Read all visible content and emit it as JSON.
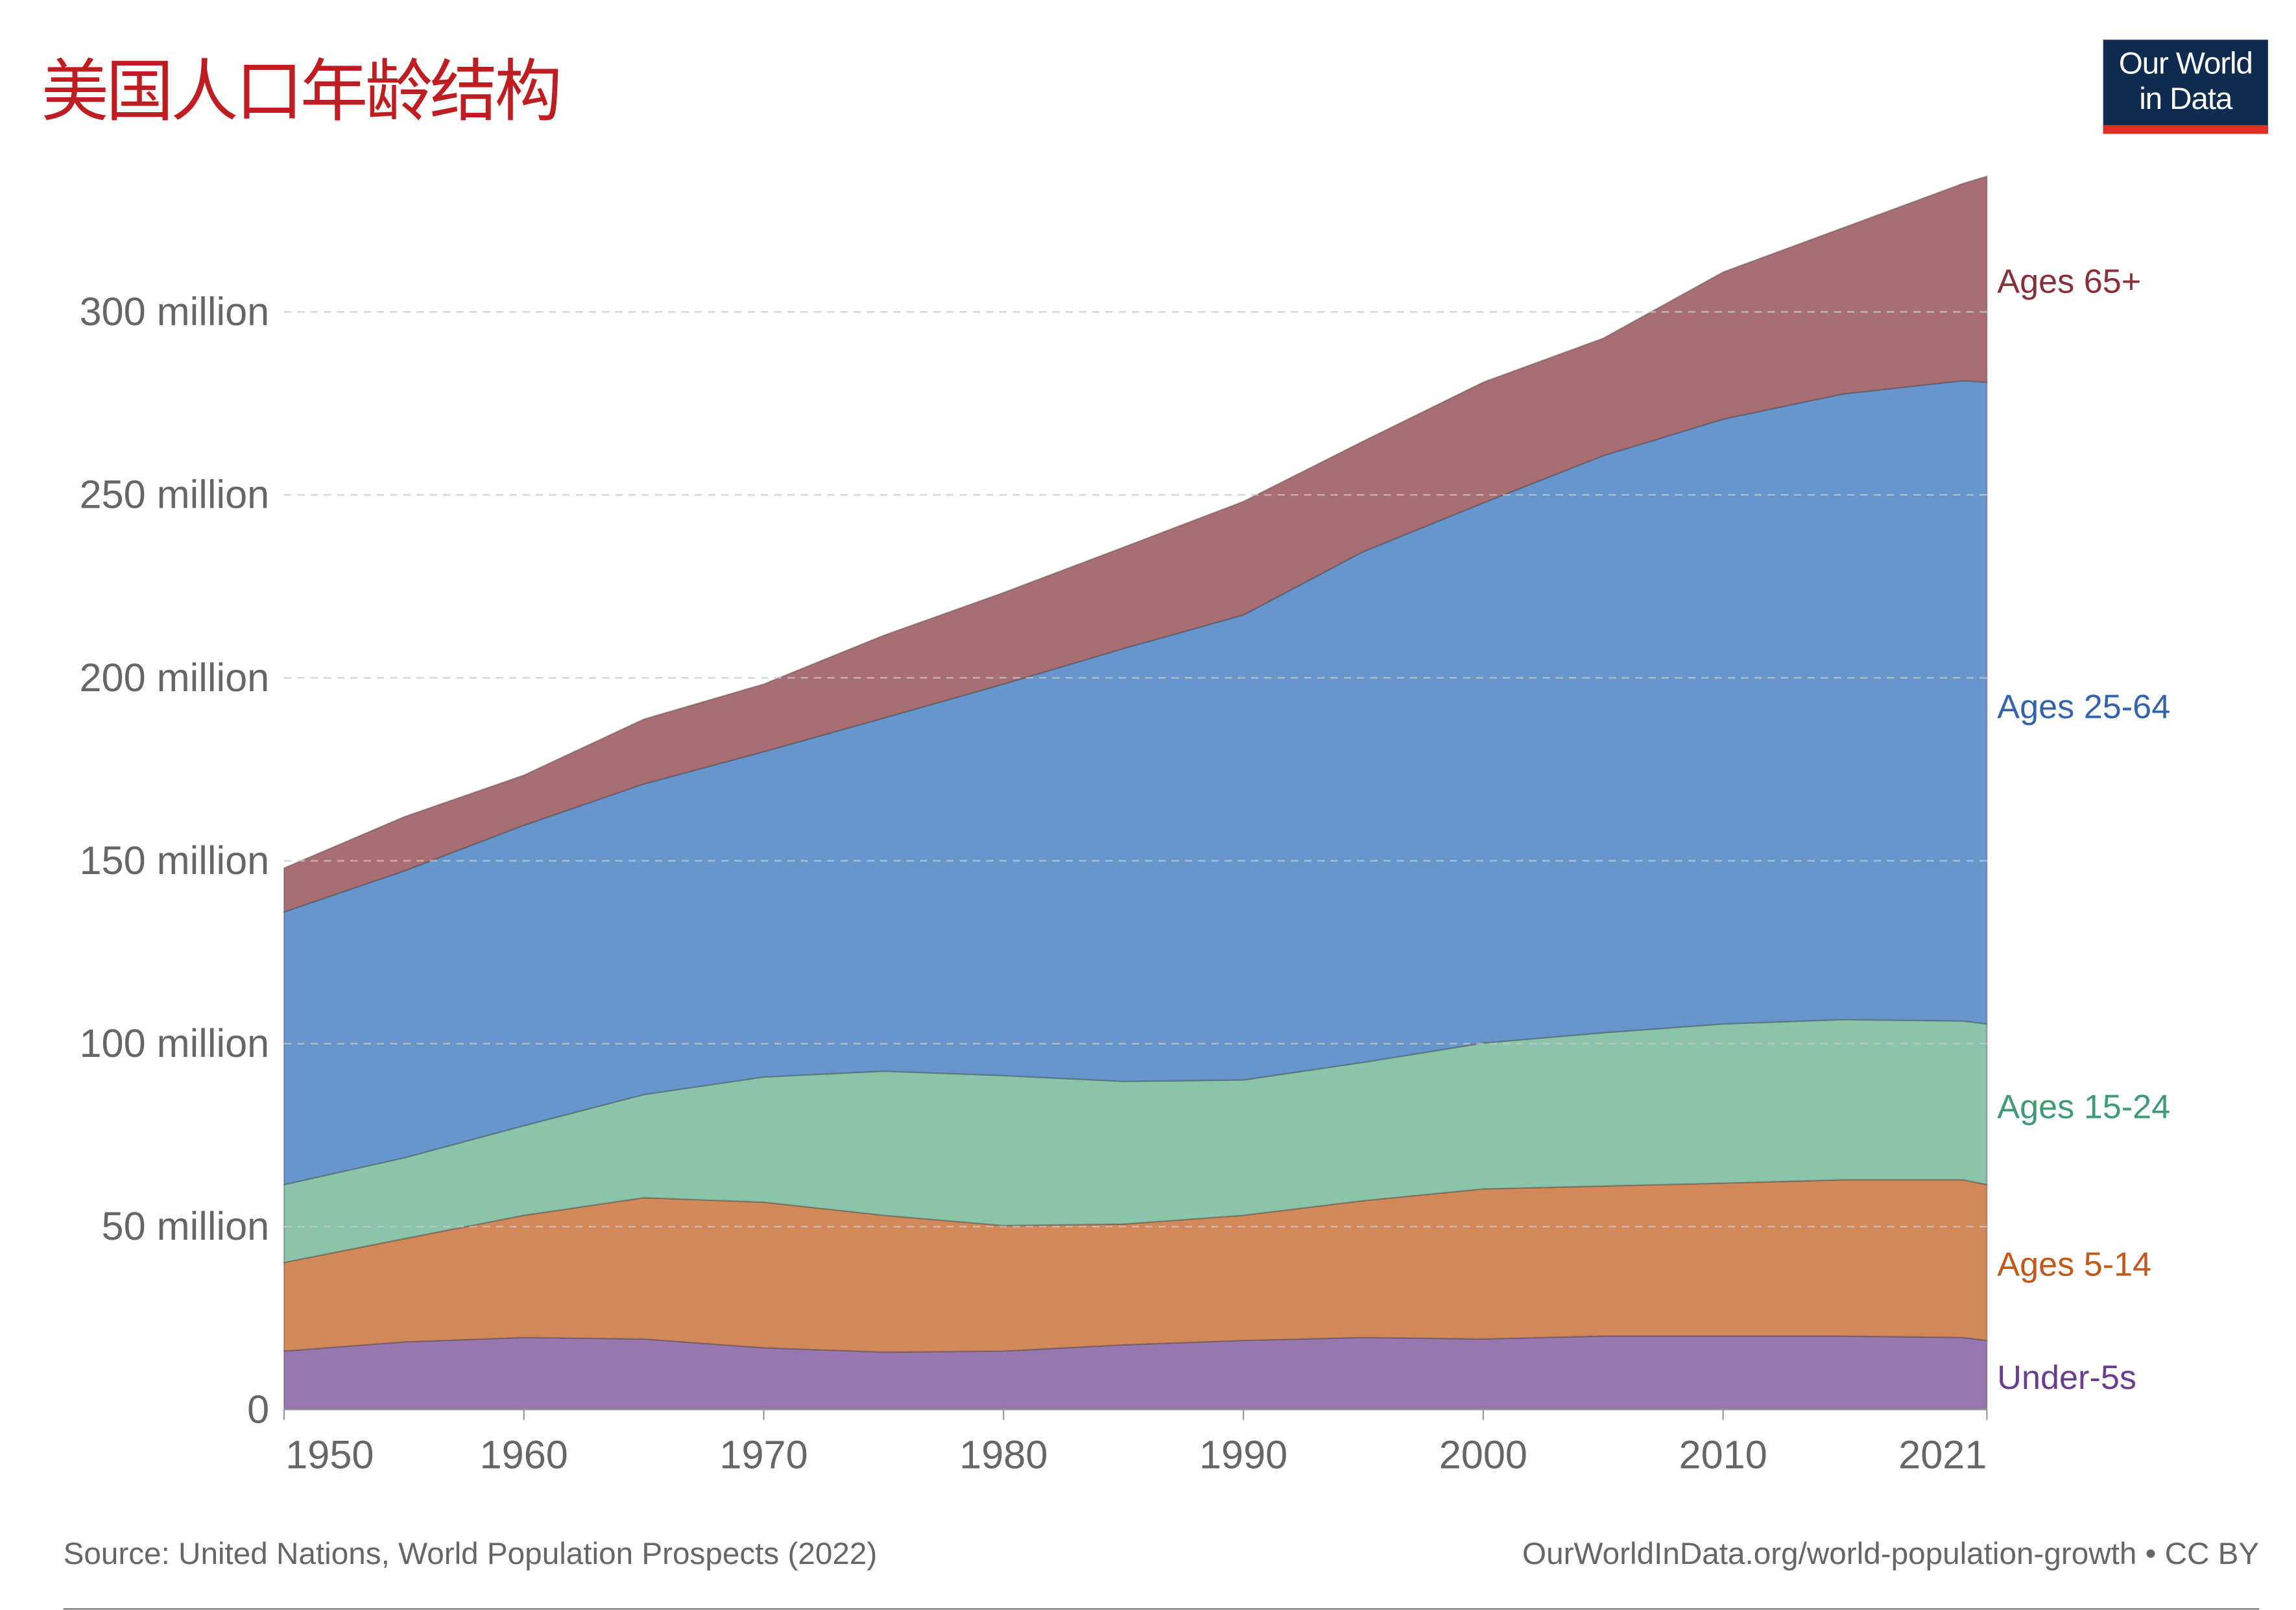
{
  "title": "美国人口年龄结构",
  "logo": {
    "line1": "Our World",
    "line2": "in Data"
  },
  "footer": {
    "source": "Source: United Nations, World Population Prospects (2022)",
    "url": "OurWorldInData.org/world-population-growth • CC BY"
  },
  "chart_data": {
    "type": "area",
    "stacked": true,
    "x": [
      1950,
      1955,
      1960,
      1965,
      1970,
      1975,
      1980,
      1985,
      1990,
      1995,
      2000,
      2005,
      2010,
      2015,
      2020,
      2021
    ],
    "series": [
      {
        "name": "Under-5s",
        "fill": "#9877b1",
        "label_color": "#6a3d8f",
        "values": [
          16,
          18.5,
          19.7,
          19.3,
          16.9,
          15.7,
          16,
          17.7,
          18.9,
          19.7,
          19.3,
          20.1,
          20.1,
          20.1,
          19.7,
          18.9
        ]
      },
      {
        "name": "Ages 5-14",
        "fill": "#d3885a",
        "label_color": "#bf5a1c",
        "values": [
          24.2,
          28.2,
          33.4,
          38.6,
          39.8,
          37.4,
          34.3,
          33,
          34.2,
          37.4,
          41,
          41,
          41.8,
          42.7,
          43.1,
          42.6
        ]
      },
      {
        "name": "Ages 15-24",
        "fill": "#8ac4aa",
        "label_color": "#3f9a76",
        "values": [
          21.3,
          22.1,
          24.5,
          28.2,
          34.2,
          39.4,
          41,
          39,
          37,
          37.8,
          39.9,
          41.9,
          43.5,
          43.8,
          43.4,
          43.9
        ]
      },
      {
        "name": "Ages 25-64",
        "fill": "#6796cd",
        "label_color": "#3563ab",
        "values": [
          74.5,
          78.4,
          82.1,
          84.9,
          88.9,
          96.5,
          107,
          118.3,
          127.1,
          139.6,
          147.6,
          157.7,
          165.3,
          171,
          175,
          175.4
        ]
      },
      {
        "name": "Ages 65+",
        "fill": "#a86e72",
        "label_color": "#883039",
        "values": [
          12,
          14.8,
          13.7,
          17.7,
          18.5,
          22.6,
          25,
          27.7,
          31,
          30.2,
          33,
          32.1,
          40.2,
          45.4,
          53.9,
          56.3
        ]
      }
    ],
    "unit": "million",
    "ylim": [
      0,
      340
    ],
    "xlim": [
      1950,
      2021
    ],
    "y_ticks": [
      0,
      50,
      100,
      150,
      200,
      250,
      300
    ],
    "y_tick_labels": [
      "0",
      "50 million",
      "100 million",
      "150 million",
      "200 million",
      "250 million",
      "300 million"
    ],
    "x_ticks": [
      1950,
      1960,
      1970,
      1980,
      1990,
      2000,
      2010,
      2021
    ],
    "x_tick_labels": [
      "1950",
      "1960",
      "1970",
      "1980",
      "1990",
      "2000",
      "2010",
      "2021"
    ],
    "grid": "horizontal dashed",
    "legend": "right"
  }
}
